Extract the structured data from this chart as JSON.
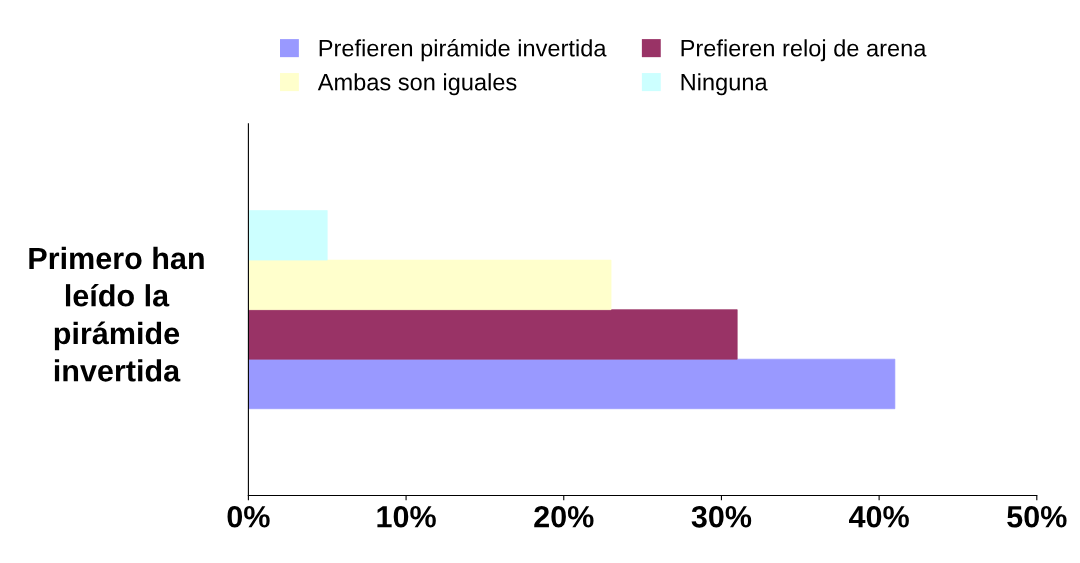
{
  "chart_data": {
    "type": "bar",
    "orientation": "horizontal",
    "categories": [
      "Primero han leído la pirámide invertida"
    ],
    "series": [
      {
        "name": "Prefieren pirámide invertida",
        "color": "#9999ff",
        "values": [
          41
        ]
      },
      {
        "name": "Prefieren reloj de arena",
        "color": "#993366",
        "values": [
          31
        ]
      },
      {
        "name": "Ambas son iguales",
        "color": "#ffffcc",
        "values": [
          23
        ]
      },
      {
        "name": "Ninguna",
        "color": "#ccffff",
        "values": [
          5
        ]
      }
    ],
    "xlim": [
      0,
      50
    ],
    "xticks": [
      {
        "value": 0,
        "label": "0%"
      },
      {
        "value": 10,
        "label": "10%"
      },
      {
        "value": 20,
        "label": "20%"
      },
      {
        "value": 30,
        "label": "30%"
      },
      {
        "value": 40,
        "label": "40%"
      },
      {
        "value": 50,
        "label": "50%"
      }
    ],
    "grid": false,
    "legend": "top"
  }
}
